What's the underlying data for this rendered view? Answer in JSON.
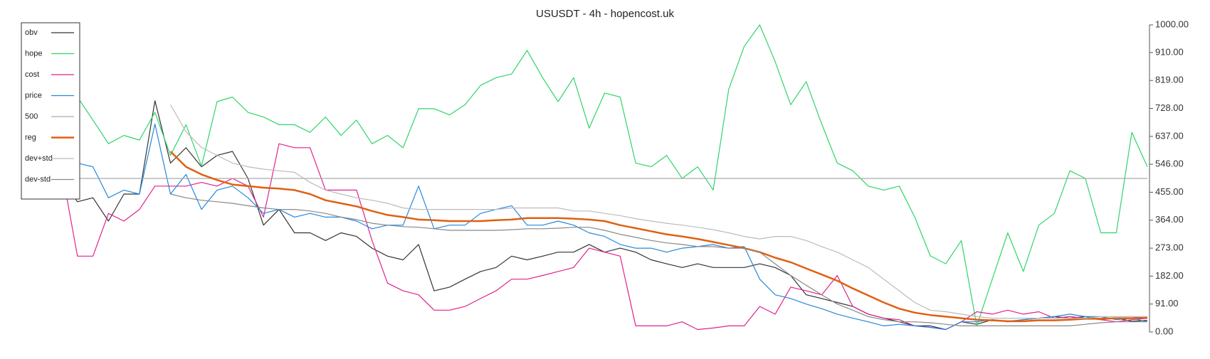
{
  "chart_data": {
    "type": "line",
    "title": "USUSDT - 4h - hopencost.uk",
    "ylim": [
      0,
      1000
    ],
    "yticks": [
      {
        "value": 0,
        "label": "0.00"
      },
      {
        "value": 91,
        "label": "91.00"
      },
      {
        "value": 182,
        "label": "182.00"
      },
      {
        "value": 273,
        "label": "273.00"
      },
      {
        "value": 364,
        "label": "364.00"
      },
      {
        "value": 455,
        "label": "455.00"
      },
      {
        "value": 546,
        "label": "546.00"
      },
      {
        "value": 637,
        "label": "637.00"
      },
      {
        "value": 728,
        "label": "728.00"
      },
      {
        "value": 819,
        "label": "819.00"
      },
      {
        "value": 910,
        "label": "910.00"
      },
      {
        "value": 1000,
        "label": "1000.00"
      }
    ],
    "legend": "upper left",
    "series": [
      {
        "name": "obv",
        "color": "#333333",
        "values": [
          500,
          424,
          437,
          361,
          449,
          449,
          753,
          550,
          600,
          538,
          575,
          588,
          500,
          348,
          399,
          323,
          323,
          298,
          323,
          311,
          273,
          247,
          235,
          285,
          134,
          146,
          172,
          197,
          210,
          247,
          235,
          247,
          260,
          260,
          285,
          260,
          273,
          260,
          235,
          222,
          210,
          222,
          210,
          210,
          210,
          222,
          210,
          184,
          121,
          109,
          96,
          83,
          58,
          45,
          33,
          20,
          20,
          8,
          33,
          25,
          40,
          33,
          40,
          45,
          50,
          45,
          50,
          40,
          45,
          35,
          38
        ]
      },
      {
        "name": "hope",
        "color": "#2fd46a",
        "values": [
          765,
          765,
          690,
          613,
          640,
          625,
          715,
          575,
          675,
          540,
          750,
          765,
          715,
          700,
          675,
          675,
          650,
          700,
          640,
          690,
          613,
          640,
          600,
          727,
          727,
          707,
          740,
          803,
          828,
          840,
          917,
          828,
          750,
          828,
          664,
          778,
          765,
          550,
          538,
          575,
          500,
          538,
          462,
          790,
          930,
          1000,
          880,
          740,
          815,
          677,
          550,
          525,
          475,
          462,
          475,
          374,
          248,
          222,
          298,
          20,
          172,
          323,
          197,
          348,
          386,
          525,
          500,
          323,
          323,
          650,
          538
        ]
      },
      {
        "name": "cost",
        "color": "#e0228c",
        "values": [
          525,
          247,
          247,
          386,
          361,
          399,
          475,
          475,
          475,
          487,
          475,
          500,
          475,
          374,
          613,
          600,
          600,
          462,
          462,
          462,
          298,
          159,
          134,
          121,
          71,
          71,
          83,
          109,
          134,
          172,
          172,
          184,
          197,
          210,
          273,
          260,
          247,
          20,
          20,
          20,
          33,
          8,
          13,
          20,
          20,
          83,
          58,
          146,
          134,
          121,
          184,
          83,
          58,
          45,
          40,
          20,
          15,
          8,
          33,
          66,
          58,
          71,
          58,
          66,
          45,
          50,
          45,
          40,
          33,
          40,
          45
        ]
      },
      {
        "name": "price",
        "color": "#2288dd",
        "values": [
          626,
          550,
          538,
          437,
          462,
          449,
          677,
          449,
          513,
          399,
          462,
          475,
          437,
          386,
          399,
          374,
          386,
          374,
          374,
          361,
          336,
          348,
          348,
          475,
          336,
          348,
          348,
          386,
          399,
          411,
          348,
          348,
          361,
          348,
          323,
          311,
          285,
          273,
          273,
          260,
          273,
          278,
          285,
          273,
          278,
          172,
          121,
          109,
          91,
          76,
          58,
          45,
          33,
          20,
          25,
          20,
          15,
          8,
          33,
          33,
          40,
          35,
          40,
          45,
          50,
          58,
          50,
          50,
          40,
          45,
          33
        ]
      },
      {
        "name": "500",
        "color": "#aaaaaa",
        "values": [
          500,
          500,
          500,
          500,
          500,
          500,
          500,
          500,
          500,
          500,
          500,
          500,
          500,
          500,
          500,
          500,
          500,
          500,
          500,
          500,
          500,
          500,
          500,
          500,
          500,
          500,
          500,
          500,
          500,
          500,
          500,
          500,
          500,
          500,
          500,
          500,
          500,
          500,
          500,
          500,
          500,
          500,
          500,
          500,
          500,
          500,
          500,
          500,
          500,
          500,
          500,
          500,
          500,
          500,
          500,
          500,
          500,
          500,
          500,
          500,
          500,
          500,
          500,
          500,
          500,
          500,
          500,
          500,
          500,
          500,
          500
        ]
      },
      {
        "name": "reg",
        "color": "#e06010",
        "width": 2.5,
        "values": [
          null,
          null,
          null,
          null,
          null,
          null,
          null,
          588,
          538,
          513,
          495,
          480,
          475,
          470,
          467,
          462,
          449,
          429,
          419,
          409,
          394,
          381,
          374,
          366,
          364,
          361,
          361,
          361,
          364,
          366,
          371,
          371,
          371,
          369,
          366,
          361,
          348,
          338,
          328,
          318,
          311,
          303,
          293,
          283,
          273,
          260,
          242,
          227,
          207,
          187,
          167,
          142,
          119,
          96,
          76,
          63,
          55,
          50,
          45,
          40,
          38,
          35,
          35,
          38,
          38,
          40,
          43,
          43,
          45,
          45,
          48
        ]
      },
      {
        "name": "dev+std",
        "color": "#bbbbbb",
        "values": [
          null,
          null,
          null,
          null,
          null,
          null,
          null,
          740,
          652,
          601,
          575,
          550,
          538,
          530,
          525,
          520,
          487,
          462,
          449,
          437,
          429,
          419,
          404,
          399,
          399,
          399,
          399,
          399,
          399,
          404,
          404,
          404,
          404,
          394,
          394,
          386,
          379,
          369,
          361,
          354,
          348,
          341,
          333,
          323,
          311,
          303,
          311,
          311,
          298,
          278,
          260,
          235,
          210,
          172,
          134,
          96,
          71,
          66,
          58,
          50,
          45,
          45,
          45,
          45,
          45,
          45,
          45,
          50,
          50,
          50,
          50
        ]
      },
      {
        "name": "dev-std",
        "color": "#888888",
        "values": [
          null,
          null,
          null,
          null,
          null,
          null,
          null,
          449,
          437,
          429,
          424,
          419,
          411,
          404,
          399,
          399,
          394,
          386,
          374,
          366,
          354,
          348,
          343,
          341,
          336,
          331,
          331,
          331,
          331,
          333,
          336,
          336,
          338,
          341,
          341,
          331,
          318,
          308,
          298,
          290,
          285,
          278,
          278,
          273,
          273,
          260,
          222,
          184,
          152,
          121,
          91,
          71,
          50,
          40,
          33,
          33,
          30,
          25,
          20,
          20,
          20,
          20,
          20,
          20,
          20,
          20,
          25,
          30,
          33,
          33,
          33
        ]
      }
    ]
  }
}
